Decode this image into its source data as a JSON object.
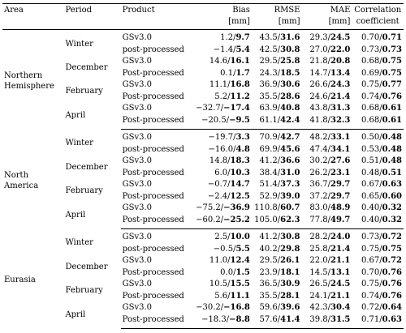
{
  "headers": {
    "area": "Area",
    "period": "Period",
    "product": "Product",
    "bias": "Bias",
    "bias_unit": "[mm]",
    "rmse": "RMSE",
    "rmse_unit": "[mm]",
    "mae": "MAE",
    "mae_unit": "[mm]",
    "corr": "Correlation",
    "corr_2": "coefficient"
  },
  "groups": [
    {
      "area": "Northern Hemisphere",
      "periods": [
        {
          "period": "Winter",
          "rows": [
            {
              "product": "GSv3.0",
              "bias": [
                "1.2/",
                "9.7"
              ],
              "rmse": [
                "43.5/",
                "31.6"
              ],
              "mae": [
                "29.3/",
                "24.5"
              ],
              "corr": [
                "0.70/",
                "0.71"
              ]
            },
            {
              "product": "post-processed",
              "bias": [
                "−1.4/",
                "5.4"
              ],
              "rmse": [
                "42.5/",
                "30.8"
              ],
              "mae": [
                "27.0/",
                "22.0"
              ],
              "corr": [
                "0.73/",
                "0.73"
              ]
            }
          ]
        },
        {
          "period": "December",
          "rows": [
            {
              "product": "GSv3.0",
              "bias": [
                "14.6/",
                "16.1"
              ],
              "rmse": [
                "29.5/",
                "25.8"
              ],
              "mae": [
                "21.8/",
                "20.8"
              ],
              "corr": [
                "0.68/",
                "0.75"
              ]
            },
            {
              "product": "Post-processed",
              "bias": [
                "0.1/",
                "1.7"
              ],
              "rmse": [
                "24.3/",
                "18.5"
              ],
              "mae": [
                "14.7/",
                "13.4"
              ],
              "corr": [
                "0.69/",
                "0.75"
              ]
            }
          ]
        },
        {
          "period": "February",
          "rows": [
            {
              "product": "GSv3.0",
              "bias": [
                "11.1/",
                "16.8"
              ],
              "rmse": [
                "36.9/",
                "30.6"
              ],
              "mae": [
                "26.6/",
                "24.3"
              ],
              "corr": [
                "0.75/",
                "0.77"
              ]
            },
            {
              "product": "Post-processed",
              "bias": [
                "5.2/",
                "11.2"
              ],
              "rmse": [
                "35.5/",
                "28.6"
              ],
              "mae": [
                "24.6/",
                "21.4"
              ],
              "corr": [
                "0.74/",
                "0.76"
              ]
            }
          ]
        },
        {
          "period": "April",
          "rows": [
            {
              "product": "GSv3.0",
              "bias": [
                "−32.7/",
                "−17.4"
              ],
              "rmse": [
                "63.9/",
                "40.8"
              ],
              "mae": [
                "43.8/",
                "31.3"
              ],
              "corr": [
                "0.68/",
                "0.61"
              ]
            },
            {
              "product": "Post-processed",
              "bias": [
                "−20.5/",
                "−9.5"
              ],
              "rmse": [
                "61.1/",
                "42.4"
              ],
              "mae": [
                "41.8/",
                "32.3"
              ],
              "corr": [
                "0.68/",
                "0.61"
              ]
            }
          ]
        }
      ]
    },
    {
      "area": "North America",
      "periods": [
        {
          "period": "Winter",
          "rows": [
            {
              "product": "GSv3.0",
              "bias": [
                "−19.7/",
                "3.3"
              ],
              "rmse": [
                "70.9/",
                "42.7"
              ],
              "mae": [
                "48.2/",
                "33.1"
              ],
              "corr": [
                "0.50/",
                "0.48"
              ]
            },
            {
              "product": "post-processed",
              "bias": [
                "−16.0/",
                "4.8"
              ],
              "rmse": [
                "69.9/",
                "45.6"
              ],
              "mae": [
                "47.4/",
                "34.1"
              ],
              "corr": [
                "0.53/",
                "0.48"
              ]
            }
          ]
        },
        {
          "period": "December",
          "rows": [
            {
              "product": "GSv3.0",
              "bias": [
                "14.8/",
                "18.3"
              ],
              "rmse": [
                "41.2/",
                "36.6"
              ],
              "mae": [
                "30.2/",
                "27.6"
              ],
              "corr": [
                "0.51/",
                "0.48"
              ]
            },
            {
              "product": "Post-processed",
              "bias": [
                "6.0/",
                "10.3"
              ],
              "rmse": [
                "38.4/",
                "31.0"
              ],
              "mae": [
                "26.2/",
                "23.1"
              ],
              "corr": [
                "0.48/",
                "0.51"
              ]
            }
          ]
        },
        {
          "period": "February",
          "rows": [
            {
              "product": "GSv3.0",
              "bias": [
                "−0.7/",
                "14.7"
              ],
              "rmse": [
                "51.4/",
                "37.3"
              ],
              "mae": [
                "36.7/",
                "29.7"
              ],
              "corr": [
                "0.67/",
                "0.63"
              ]
            },
            {
              "product": "Post-processed",
              "bias": [
                "−2.4/",
                "12.5"
              ],
              "rmse": [
                "52.9/",
                "39.0"
              ],
              "mae": [
                "37.2/",
                "29.7"
              ],
              "corr": [
                "0.65/",
                "0.60"
              ]
            }
          ]
        },
        {
          "period": "April",
          "rows": [
            {
              "product": "GSv3.0",
              "bias": [
                "−75.2/",
                "−36.9"
              ],
              "rmse": [
                "110.8/",
                "60.7"
              ],
              "mae": [
                "83.0/",
                "48.9"
              ],
              "corr": [
                "0.40/",
                "0.32"
              ]
            },
            {
              "product": "Post-processed",
              "bias": [
                "−60.2/",
                "−25.2"
              ],
              "rmse": [
                "105.0/",
                "62.3"
              ],
              "mae": [
                "77.8/",
                "49.7"
              ],
              "corr": [
                "0.40/",
                "0.32"
              ]
            }
          ]
        }
      ]
    },
    {
      "area": "Eurasia",
      "periods": [
        {
          "period": "Winter",
          "rows": [
            {
              "product": "GSv3.0",
              "bias": [
                "2.5/",
                "10.0"
              ],
              "rmse": [
                "41.2/",
                "30.8"
              ],
              "mae": [
                "28.2/",
                "24.0"
              ],
              "corr": [
                "0.73/",
                "0.72"
              ]
            },
            {
              "product": "post-processed",
              "bias": [
                "−0.5/",
                "5.5"
              ],
              "rmse": [
                "40.2/",
                "29.8"
              ],
              "mae": [
                "25.8/",
                "21.4"
              ],
              "corr": [
                "0.75/",
                "0.75"
              ]
            }
          ]
        },
        {
          "period": "December",
          "rows": [
            {
              "product": "GSv3.0",
              "bias": [
                "11.0/",
                "12.4"
              ],
              "rmse": [
                "29.5/",
                "26.1"
              ],
              "mae": [
                "22.0/",
                "21.1"
              ],
              "corr": [
                "0.67/",
                "0.72"
              ]
            },
            {
              "product": "Post-processed",
              "bias": [
                "0.0/",
                "1.5"
              ],
              "rmse": [
                "23.9/",
                "18.1"
              ],
              "mae": [
                "14.5/",
                "13.1"
              ],
              "corr": [
                "0.70/",
                "0.76"
              ]
            }
          ]
        },
        {
          "period": "February",
          "rows": [
            {
              "product": "GSv3.0",
              "bias": [
                "10.5/",
                "15.5"
              ],
              "rmse": [
                "36.5/",
                "30.9"
              ],
              "mae": [
                "26.5/",
                "24.5"
              ],
              "corr": [
                "0.75/",
                "0.76"
              ]
            },
            {
              "product": "Post-processed",
              "bias": [
                "5.6/",
                "11.1"
              ],
              "rmse": [
                "35.5/",
                "28.1"
              ],
              "mae": [
                "24.1/",
                "21.1"
              ],
              "corr": [
                "0.74/",
                "0.76"
              ]
            }
          ]
        },
        {
          "period": "April",
          "rows": [
            {
              "product": "GSv3.0",
              "bias": [
                "−30.2/",
                "−16.8"
              ],
              "rmse": [
                "59.6/",
                "39.6"
              ],
              "mae": [
                "42.3/",
                "30.4"
              ],
              "corr": [
                "0.72/",
                "0.64"
              ]
            },
            {
              "product": "Post-processed",
              "bias": [
                "−18.3/",
                "−8.8"
              ],
              "rmse": [
                "57.6/",
                "41.4"
              ],
              "mae": [
                "39.8/",
                "31.5"
              ],
              "corr": [
                "0.71/",
                "0.63"
              ]
            }
          ]
        }
      ]
    }
  ]
}
